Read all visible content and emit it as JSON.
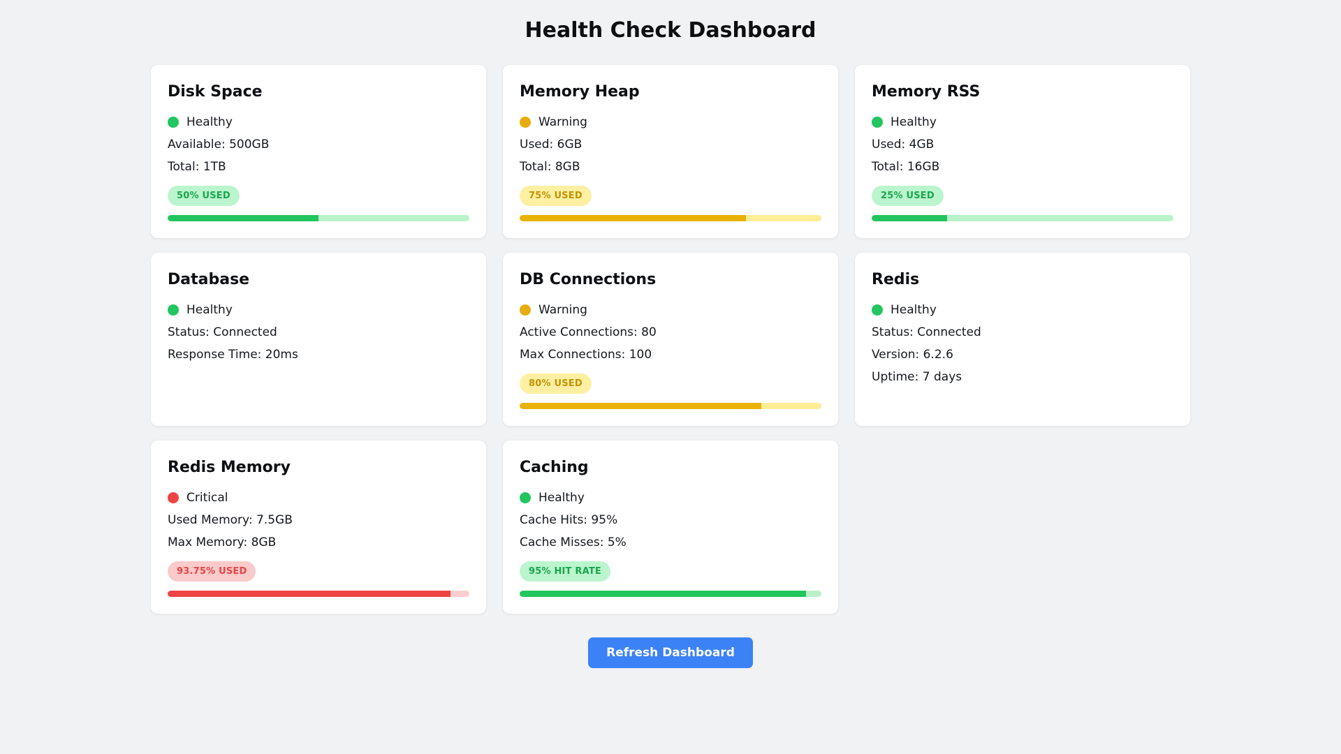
{
  "page": {
    "title": "Health Check Dashboard",
    "background_color": "#f1f2f4"
  },
  "status_colors": {
    "healthy": "#22c55e",
    "warning": "#e7ac0b",
    "critical": "#ef4444",
    "healthy_light": "#b9f2c8",
    "warning_light": "#fdee96",
    "critical_light": "#fbcdce"
  },
  "cards": [
    {
      "id": "disk-space",
      "title": "Disk Space",
      "status": {
        "label": "Healthy",
        "level": "healthy"
      },
      "metrics": [
        "Available: 500GB",
        "Total: 1TB"
      ],
      "badge": {
        "label": "50% USED",
        "level": "healthy"
      },
      "progress": {
        "percent": 50,
        "level": "healthy"
      }
    },
    {
      "id": "memory-heap",
      "title": "Memory Heap",
      "status": {
        "label": "Warning",
        "level": "warning"
      },
      "metrics": [
        "Used: 6GB",
        "Total: 8GB"
      ],
      "badge": {
        "label": "75% USED",
        "level": "warning"
      },
      "progress": {
        "percent": 75,
        "level": "warning"
      }
    },
    {
      "id": "memory-rss",
      "title": "Memory RSS",
      "status": {
        "label": "Healthy",
        "level": "healthy"
      },
      "metrics": [
        "Used: 4GB",
        "Total: 16GB"
      ],
      "badge": {
        "label": "25% USED",
        "level": "healthy"
      },
      "progress": {
        "percent": 25,
        "level": "healthy"
      }
    },
    {
      "id": "database",
      "title": "Database",
      "status": {
        "label": "Healthy",
        "level": "healthy"
      },
      "metrics": [
        "Status: Connected",
        "Response Time: 20ms"
      ],
      "badge": null,
      "progress": null
    },
    {
      "id": "db-connections",
      "title": "DB Connections",
      "status": {
        "label": "Warning",
        "level": "warning"
      },
      "metrics": [
        "Active Connections: 80",
        "Max Connections: 100"
      ],
      "badge": {
        "label": "80% USED",
        "level": "warning"
      },
      "progress": {
        "percent": 80,
        "level": "warning"
      }
    },
    {
      "id": "redis",
      "title": "Redis",
      "status": {
        "label": "Healthy",
        "level": "healthy"
      },
      "metrics": [
        "Status: Connected",
        "Version: 6.2.6",
        "Uptime: 7 days"
      ],
      "badge": null,
      "progress": null
    },
    {
      "id": "redis-memory",
      "title": "Redis Memory",
      "status": {
        "label": "Critical",
        "level": "critical"
      },
      "metrics": [
        "Used Memory: 7.5GB",
        "Max Memory: 8GB"
      ],
      "badge": {
        "label": "93.75% USED",
        "level": "critical"
      },
      "progress": {
        "percent": 93.75,
        "level": "critical"
      }
    },
    {
      "id": "caching",
      "title": "Caching",
      "status": {
        "label": "Healthy",
        "level": "healthy"
      },
      "metrics": [
        "Cache Hits: 95%",
        "Cache Misses: 5%"
      ],
      "badge": {
        "label": "95% HIT RATE",
        "level": "healthy"
      },
      "progress": {
        "percent": 95,
        "level": "healthy"
      }
    }
  ],
  "refresh_button": {
    "label": "Refresh Dashboard",
    "color": "#3b82f6"
  }
}
